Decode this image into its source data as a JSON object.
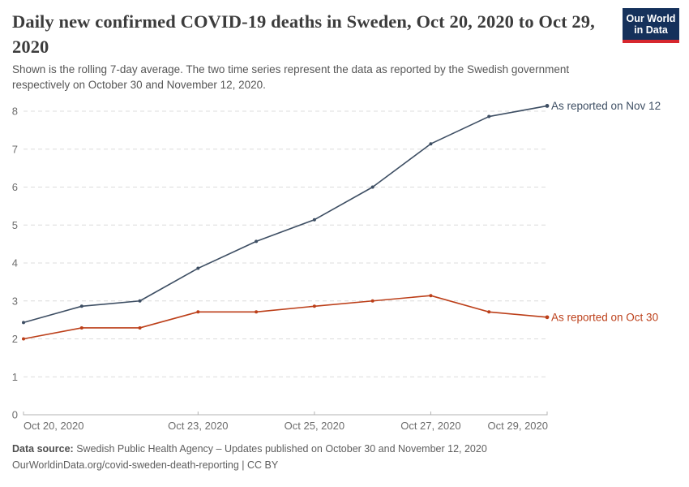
{
  "header": {
    "title": "Daily new confirmed COVID-19 deaths in Sweden, Oct 20, 2020 to Oct 29, 2020",
    "subtitle": "Shown is the rolling 7-day average. The two time series represent the data as reported by the Swedish government respectively on October 30 and November 12, 2020."
  },
  "logo": {
    "line1": "Our World",
    "line2": "in Data",
    "bg_color": "#15315b",
    "bar_color": "#d7272e"
  },
  "chart_data": {
    "type": "line",
    "x": [
      "Oct 20, 2020",
      "Oct 21, 2020",
      "Oct 22, 2020",
      "Oct 23, 2020",
      "Oct 24, 2020",
      "Oct 25, 2020",
      "Oct 26, 2020",
      "Oct 27, 2020",
      "Oct 28, 2020",
      "Oct 29, 2020"
    ],
    "series": [
      {
        "name": "As reported on Nov 12",
        "color": "#3d4e63",
        "values": [
          2.43,
          2.86,
          3.0,
          3.86,
          4.57,
          5.14,
          6.0,
          7.14,
          7.86,
          8.14
        ]
      },
      {
        "name": "As reported on Oct 30",
        "color": "#bc3f19",
        "values": [
          2.0,
          2.29,
          2.29,
          2.71,
          2.71,
          2.86,
          3.0,
          3.14,
          2.71,
          2.57
        ]
      }
    ],
    "ylim": [
      0,
      8
    ],
    "yticks": [
      0,
      1,
      2,
      3,
      4,
      5,
      6,
      7,
      8
    ],
    "xticks": [
      {
        "label": "Oct 20, 2020",
        "index": 0
      },
      {
        "label": "Oct 23, 2020",
        "index": 3
      },
      {
        "label": "Oct 25, 2020",
        "index": 5
      },
      {
        "label": "Oct 27, 2020",
        "index": 7
      },
      {
        "label": "Oct 29, 2020",
        "index": 9
      }
    ],
    "grid": true,
    "grid_color": "#dcdcdc",
    "axis_color": "#b3b3b3",
    "legend_position": "labels-at-line-ends-right"
  },
  "footer": {
    "source_label": "Data source:",
    "source_text": " Swedish Public Health Agency – Updates published on October 30 and November 12, 2020",
    "link_line": "OurWorldinData.org/covid-sweden-death-reporting | CC BY"
  }
}
